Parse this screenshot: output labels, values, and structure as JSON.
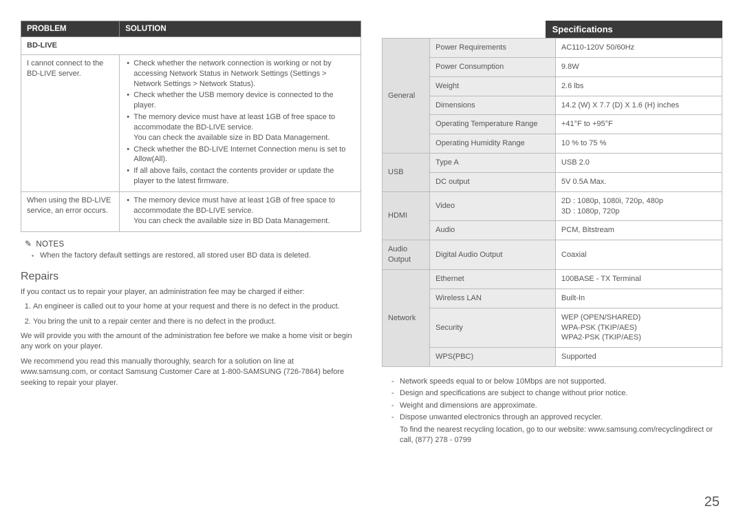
{
  "left": {
    "table_headers": {
      "problem": "Problem",
      "solution": "Solution"
    },
    "section_label": "BD-Live",
    "row1": {
      "problem": "I cannot connect to the BD-LIVE server.",
      "b1": "Check whether the network connection is working or not by accessing Network Status in Network Settings (Settings > Network Settings > Network Status).",
      "b2": "Check whether the USB memory device is connected to the player.",
      "b3": "The memory device must have at least 1GB of free space to accommodate the BD-LIVE service.",
      "b3s": "You can check the available size in BD Data Management.",
      "b4": "Check whether the BD-LIVE Internet Connection menu is set to Allow(All).",
      "b5": "If all above fails, contact the contents provider or update the player to the latest firmware."
    },
    "row2": {
      "problem": "When using the BD-LIVE service, an error occurs.",
      "b1": "The memory device must have at least 1GB of free space to accommodate the BD-LIVE service.",
      "b1s": "You can check the available size in BD Data Management."
    },
    "notes_label": "NOTES",
    "note1": "When the factory default settings are restored, all stored user BD data is deleted.",
    "repairs_heading": "Repairs",
    "repairs_intro": "If you contact us to repair your player, an administration fee may be charged if either:",
    "repairs_li1": "An engineer is called out to your home at your request and there is no defect in the product.",
    "repairs_li2": "You bring the unit to a repair center and there is no defect in the product.",
    "repairs_p2": "We will provide you with the amount of the administration fee before we make a home visit or begin any work on your player.",
    "repairs_p3": "We recommend you read this manually thoroughly, search for a solution on line at www.samsung.com, or contact Samsung Customer Care at 1-800-SAMSUNG (726-7864) before seeking to repair your player."
  },
  "right": {
    "spec_heading": "Specifications",
    "cats": {
      "general": "General",
      "usb": "USB",
      "hdmi": "HDMI",
      "audio_out": "Audio Output",
      "network": "Network"
    },
    "rows": {
      "g1p": "Power Requirements",
      "g1v": "AC110-120V 50/60Hz",
      "g2p": "Power Consumption",
      "g2v": "9.8W",
      "g3p": "Weight",
      "g3v": "2.6 lbs",
      "g4p": "Dimensions",
      "g4v": "14.2 (W) X 7.7 (D) X 1.6 (H) inches",
      "g5p": "Operating Temperature Range",
      "g5v": "+41°F to +95°F",
      "g6p": "Operating Humidity Range",
      "g6v": "10 % to 75 %",
      "u1p": "Type A",
      "u1v": "USB 2.0",
      "u2p": "DC output",
      "u2v": "5V 0.5A Max.",
      "h1p": "Video",
      "h1v": "2D : 1080p, 1080i, 720p, 480p\n3D : 1080p, 720p",
      "h2p": "Audio",
      "h2v": "PCM, Bitstream",
      "a1p": "Digital Audio Output",
      "a1v": "Coaxial",
      "n1p": "Ethernet",
      "n1v": "100BASE - TX Terminal",
      "n2p": "Wireless LAN",
      "n2v": "Built-In",
      "n3p": "Security",
      "n3v": "WEP (OPEN/SHARED)\nWPA-PSK (TKIP/AES)\nWPA2-PSK (TKIP/AES)",
      "n4p": "WPS(PBC)",
      "n4v": "Supported"
    },
    "fn1": "Network speeds equal to or below 10Mbps are not supported.",
    "fn2": "Design and specifications are subject to change without prior notice.",
    "fn3": "Weight and dimensions are approximate.",
    "fn4": "Dispose unwanted electronics through an approved recycler.",
    "fn4b": "To find the nearest recycling location, go to our website: www.samsung.com/recyclingdirect or call, (877) 278 - 0799"
  },
  "page_number": "25"
}
